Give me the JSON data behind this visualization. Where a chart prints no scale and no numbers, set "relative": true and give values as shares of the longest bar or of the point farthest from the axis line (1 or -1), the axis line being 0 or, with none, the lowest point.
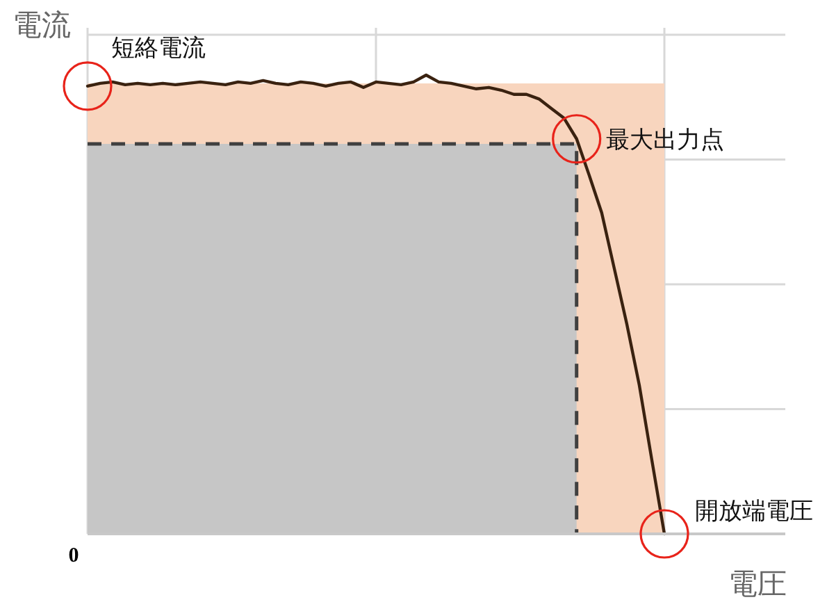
{
  "chart_data": {
    "type": "line",
    "relative": true,
    "ylabel": "電流",
    "xlabel": "電圧",
    "grid": true,
    "categories": [
      null,
      null,
      null,
      null,
      null,
      null,
      null,
      null,
      null,
      null,
      null,
      null,
      null,
      null,
      null,
      null,
      null,
      null,
      null,
      null,
      null,
      null,
      null,
      null,
      null,
      null,
      null,
      null,
      null,
      null,
      null,
      null,
      null,
      null,
      null,
      null,
      null,
      null,
      null,
      null,
      null,
      null,
      null,
      null,
      null,
      null,
      null
    ],
    "series": [
      {
        "type": "area",
        "color": "#f8d5be",
        "values": [
          0.982,
          0.982,
          0.982,
          0.982,
          0.982,
          0.982,
          0.982,
          0.982,
          0.982,
          0.982,
          0.982,
          0.982,
          0.982,
          0.982,
          0.982,
          0.982,
          0.982,
          0.982,
          0.982,
          0.982,
          0.982,
          0.982,
          0.982,
          0.982,
          0.982,
          0.982,
          0.982,
          0.982,
          0.982,
          0.982,
          0.982,
          0.982,
          0.982,
          0.982,
          0.982,
          0.982,
          0.982,
          0.982,
          0.982,
          0.982,
          0.982,
          0.982,
          0.982,
          0.982,
          0.982,
          0.982,
          0.982
        ]
      },
      {
        "type": "area",
        "color": "#c6c6c6",
        "line_style": "dashed",
        "values": [
          0.85,
          0.85,
          0.85,
          0.85,
          0.85,
          0.85,
          0.85,
          0.85,
          0.85,
          0.85,
          0.85,
          0.85,
          0.85,
          0.85,
          0.85,
          0.85,
          0.85,
          0.85,
          0.85,
          0.85,
          0.85,
          0.85,
          0.85,
          0.85,
          0.85,
          0.85,
          0.85,
          0.85,
          0.85,
          0.85,
          0.85,
          0.85,
          0.85,
          0.85,
          0.85,
          0.85,
          0.85,
          0.85,
          0.85,
          0.85,
          null,
          null,
          null,
          null,
          null,
          null,
          null
        ]
      },
      {
        "color": "#3a2210",
        "values": [
          0.976,
          0.982,
          0.985,
          0.979,
          0.982,
          0.979,
          0.982,
          0.979,
          0.982,
          0.985,
          0.982,
          0.979,
          0.985,
          0.982,
          0.988,
          0.982,
          0.979,
          0.985,
          0.982,
          0.976,
          0.982,
          0.985,
          0.973,
          0.985,
          0.982,
          0.979,
          0.985,
          1.0,
          0.985,
          0.982,
          0.976,
          0.97,
          0.973,
          0.967,
          0.958,
          0.958,
          0.948,
          0.927,
          0.906,
          0.861,
          0.782,
          0.7,
          0.579,
          0.458,
          0.324,
          0.161,
          0
        ]
      }
    ],
    "annotations": [
      "0",
      {
        "text": "短絡電流",
        "y": 0.976
      },
      {
        "text": "最大出力点",
        "y": 0.861
      },
      "開放端電圧"
    ]
  }
}
